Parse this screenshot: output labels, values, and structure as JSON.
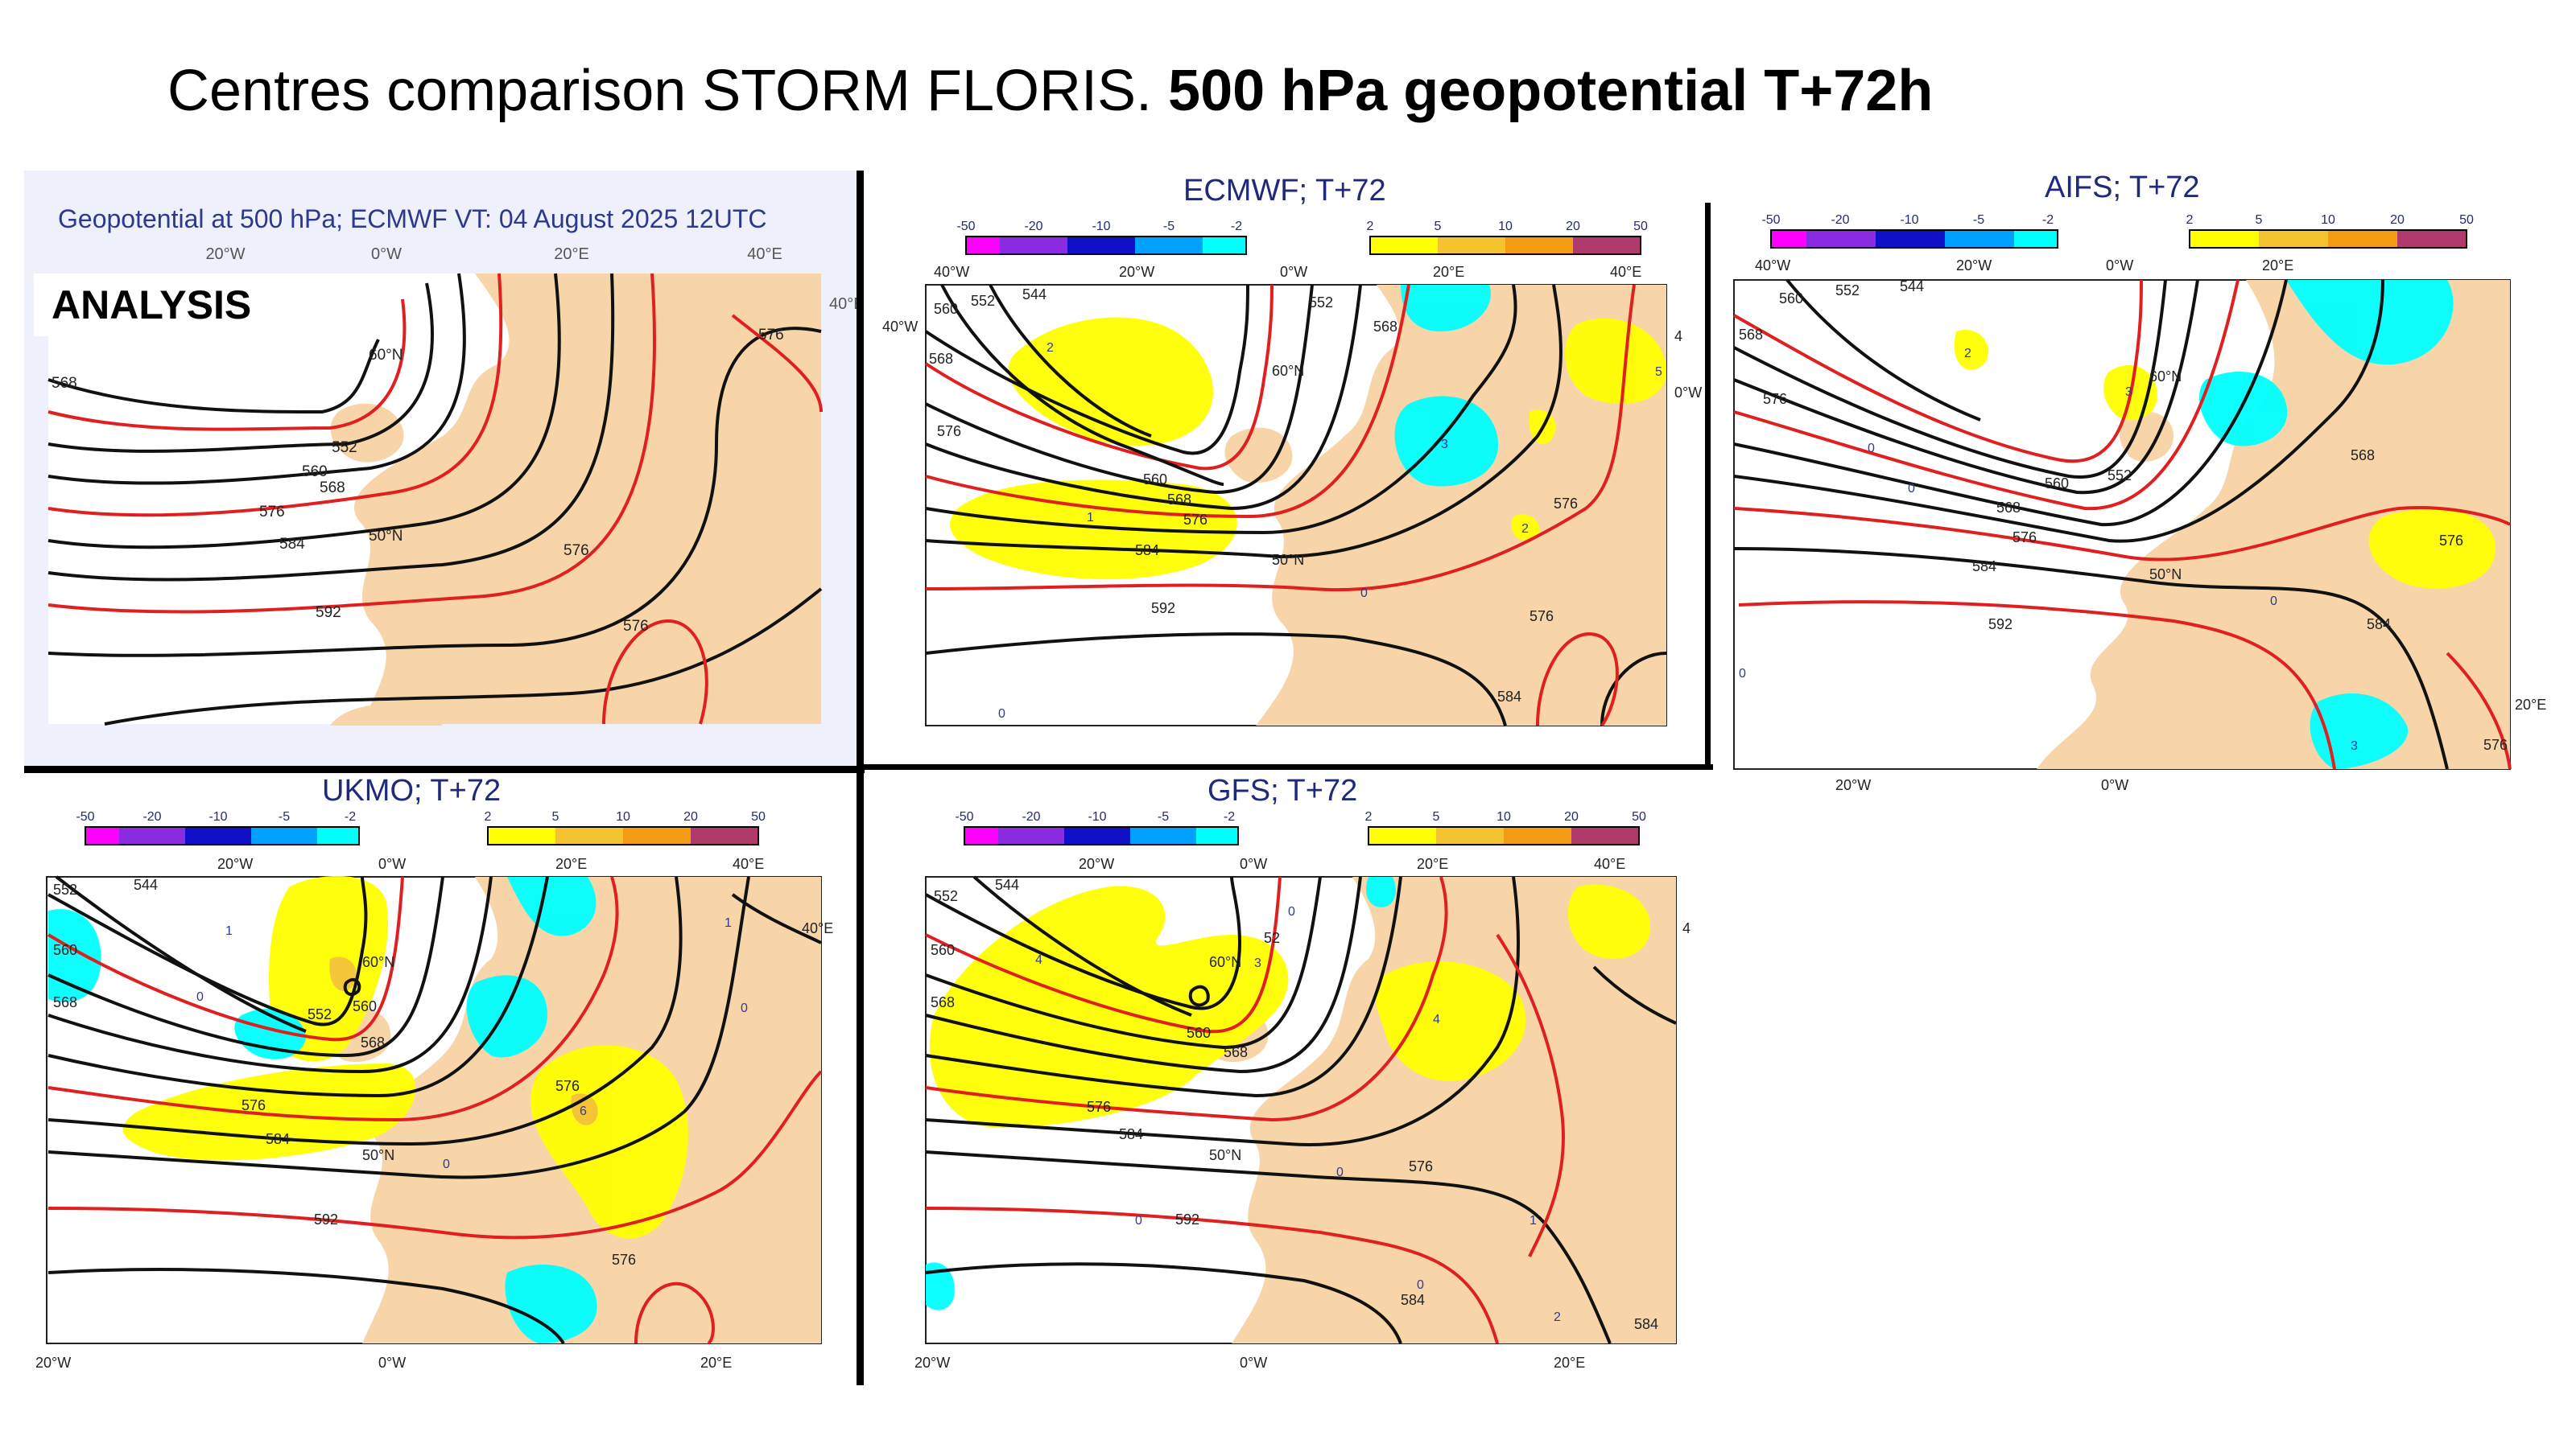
{
  "title": {
    "regular": "Centres comparison STORM FLORIS.",
    "bold": "500 hPa geopotential T+72h"
  },
  "colors": {
    "land": "#f7d5a9",
    "sea": "#ffffff",
    "analysis_bg": "#eef0fb",
    "contour_black": "#111111",
    "contour_red": "#e02020",
    "pos_diff": [
      "#ffff00",
      "#f4c430",
      "#f39c12",
      "#c0392b",
      "#b03a6c"
    ],
    "neg_diff": [
      "#ff00ff",
      "#8a2be2",
      "#1010c8",
      "#00a0ff",
      "#00ffff"
    ]
  },
  "legend": {
    "negative_ticks": [
      "-50",
      "-20",
      "-10",
      "-5",
      "-2"
    ],
    "positive_ticks": [
      "2",
      "5",
      "10",
      "20",
      "50"
    ]
  },
  "panels": [
    {
      "id": "analysis",
      "header": "Geopotential at 500 hPa; ECMWF VT: 04 August 2025 12UTC",
      "badge": "ANALYSIS",
      "top_ticks": [
        "20°W",
        "0°W",
        "20°E",
        "40°E"
      ],
      "side_tick": "40°E",
      "lat_labels": [
        "60°N",
        "50°N"
      ],
      "contour_labels": [
        "568",
        "552",
        "560",
        "568",
        "576",
        "584",
        "592",
        "576",
        "576",
        "576"
      ]
    },
    {
      "id": "ecmwf",
      "title": "ECMWF; T+72",
      "top_ticks": [
        "40°W",
        "20°W",
        "0°W",
        "20°E",
        "40°E"
      ],
      "side_ticks": [
        "40°W",
        "0°W",
        "4"
      ],
      "lat_labels": [
        "60°N",
        "50°N"
      ],
      "contour_labels": [
        "560",
        "552",
        "544",
        "568",
        "576",
        "552",
        "568",
        "560",
        "568",
        "576",
        "584",
        "592",
        "576",
        "576",
        "584"
      ],
      "diff_labels": [
        "2",
        "1",
        "3",
        "2",
        "0",
        "0",
        "5"
      ]
    },
    {
      "id": "aifs",
      "title": "AIFS; T+72",
      "top_ticks": [
        "40°W",
        "20°W",
        "0°W",
        "20°E"
      ],
      "bottom_ticks": [
        "20°W",
        "0°W"
      ],
      "side_tick": "20°E",
      "lat_labels": [
        "60°N",
        "50°N"
      ],
      "contour_labels": [
        "568",
        "560",
        "552",
        "544",
        "576",
        "560",
        "552",
        "568",
        "576",
        "584",
        "592",
        "568",
        "576",
        "584",
        "576"
      ],
      "diff_labels": [
        "2",
        "3",
        "0",
        "0",
        "0",
        "0",
        "3"
      ]
    },
    {
      "id": "ukmo",
      "title": "UKMO; T+72",
      "top_ticks": [
        "20°W",
        "0°W",
        "20°E",
        "40°E"
      ],
      "bottom_ticks": [
        "20°W",
        "0°W",
        "20°E"
      ],
      "side_tick": "40°E",
      "lat_labels": [
        "60°N",
        "50°N"
      ],
      "contour_labels": [
        "552",
        "544",
        "560",
        "568",
        "552",
        "560",
        "568",
        "576",
        "584",
        "592",
        "576",
        "576"
      ],
      "diff_labels": [
        "1",
        "0",
        "1",
        "0",
        "6",
        "0"
      ]
    },
    {
      "id": "gfs",
      "title": "GFS; T+72",
      "top_ticks": [
        "20°W",
        "0°W",
        "20°E",
        "40°E"
      ],
      "bottom_ticks": [
        "20°W",
        "0°W",
        "20°E"
      ],
      "side_tick": "4",
      "lat_labels": [
        "60°N",
        "50°N"
      ],
      "contour_labels": [
        "552",
        "544",
        "560",
        "568",
        "52",
        "560",
        "568",
        "576",
        "584",
        "592",
        "576",
        "584",
        "584"
      ],
      "diff_labels": [
        "4",
        "3",
        "4",
        "0",
        "0",
        "1",
        "0",
        "0",
        "2"
      ]
    }
  ]
}
